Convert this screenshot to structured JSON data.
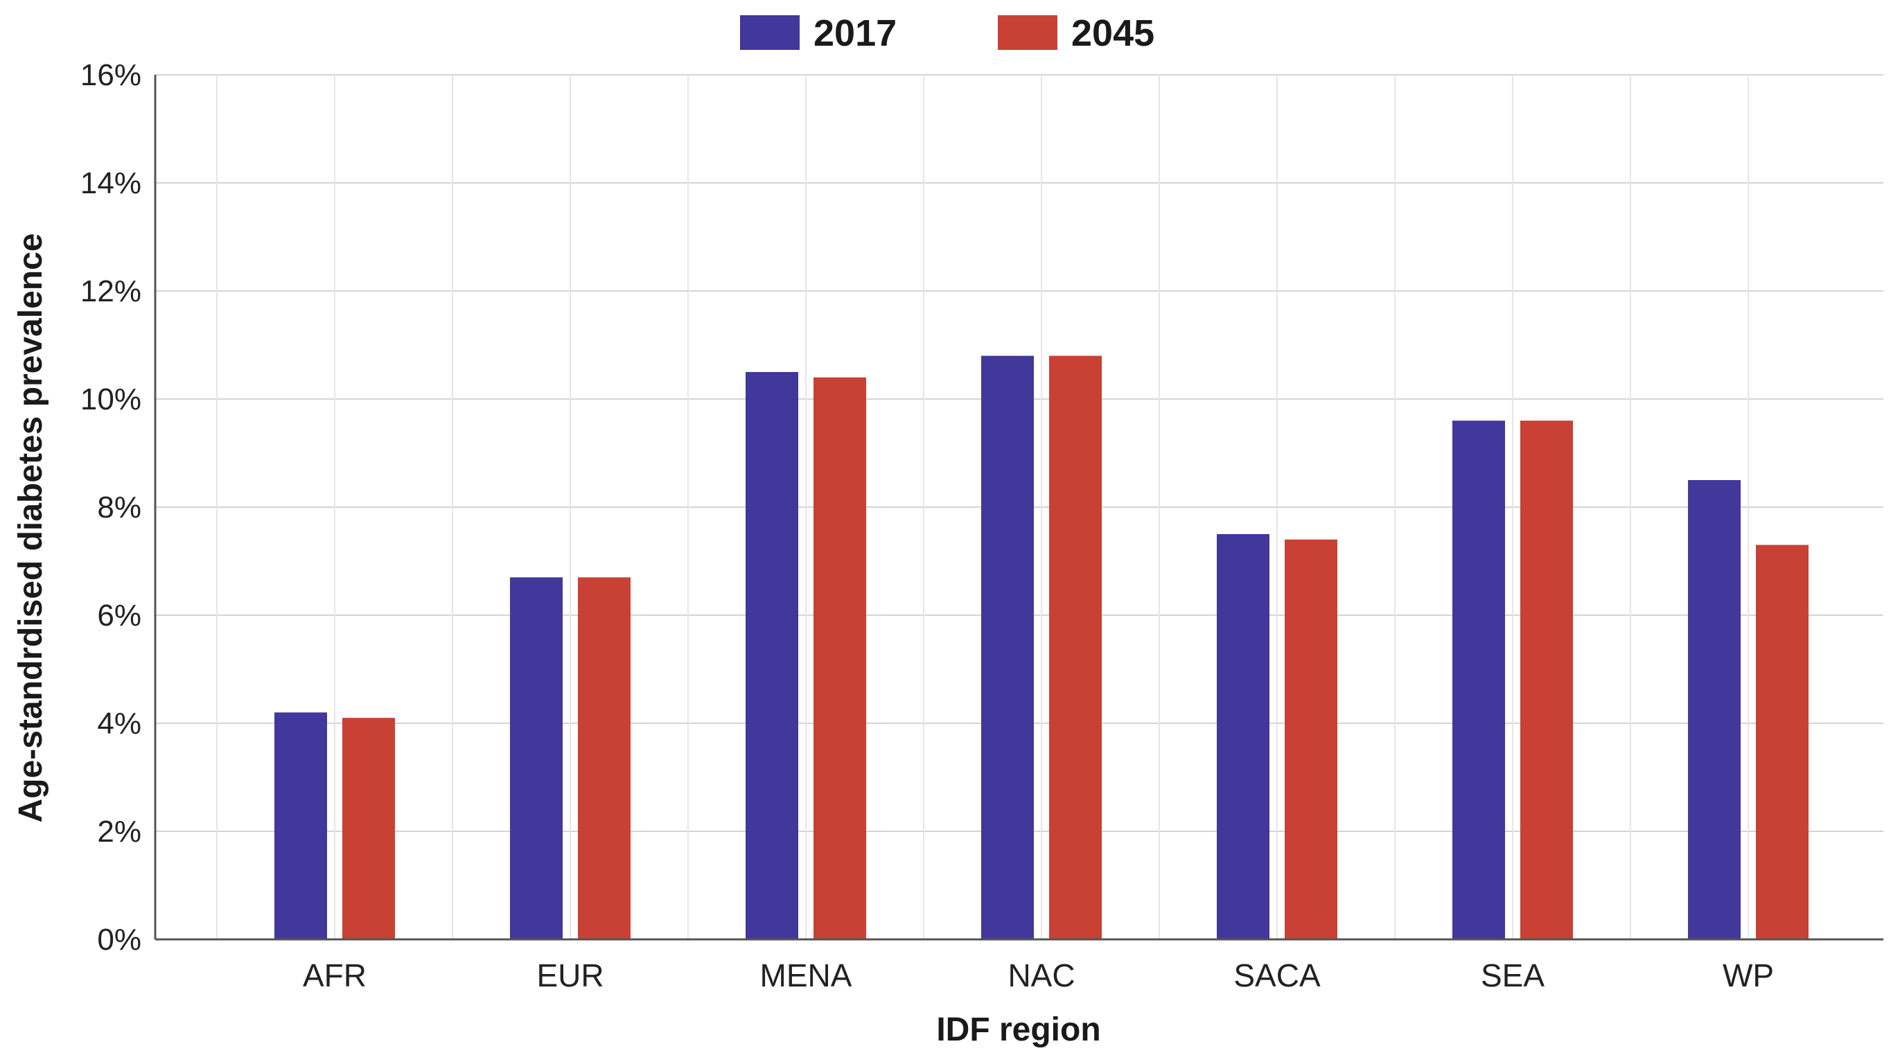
{
  "chart_data": {
    "type": "bar",
    "title": "",
    "xlabel": "IDF region",
    "ylabel": "Age-standrdised diabetes prevalence",
    "categories": [
      "AFR",
      "EUR",
      "MENA",
      "NAC",
      "SACA",
      "SEA",
      "WP"
    ],
    "series": [
      {
        "name": "2017",
        "color": "#42379a",
        "values": [
          4.2,
          6.7,
          10.5,
          10.8,
          7.5,
          9.6,
          8.5
        ]
      },
      {
        "name": "2045",
        "color": "#c94134",
        "values": [
          4.1,
          6.7,
          10.4,
          10.8,
          7.4,
          9.6,
          7.3
        ]
      }
    ],
    "ylim": [
      0,
      16
    ],
    "yticks": [
      0,
      2,
      4,
      6,
      8,
      10,
      12,
      14,
      16
    ],
    "ytick_suffix": "%",
    "grid": true,
    "legend": "top-center"
  }
}
